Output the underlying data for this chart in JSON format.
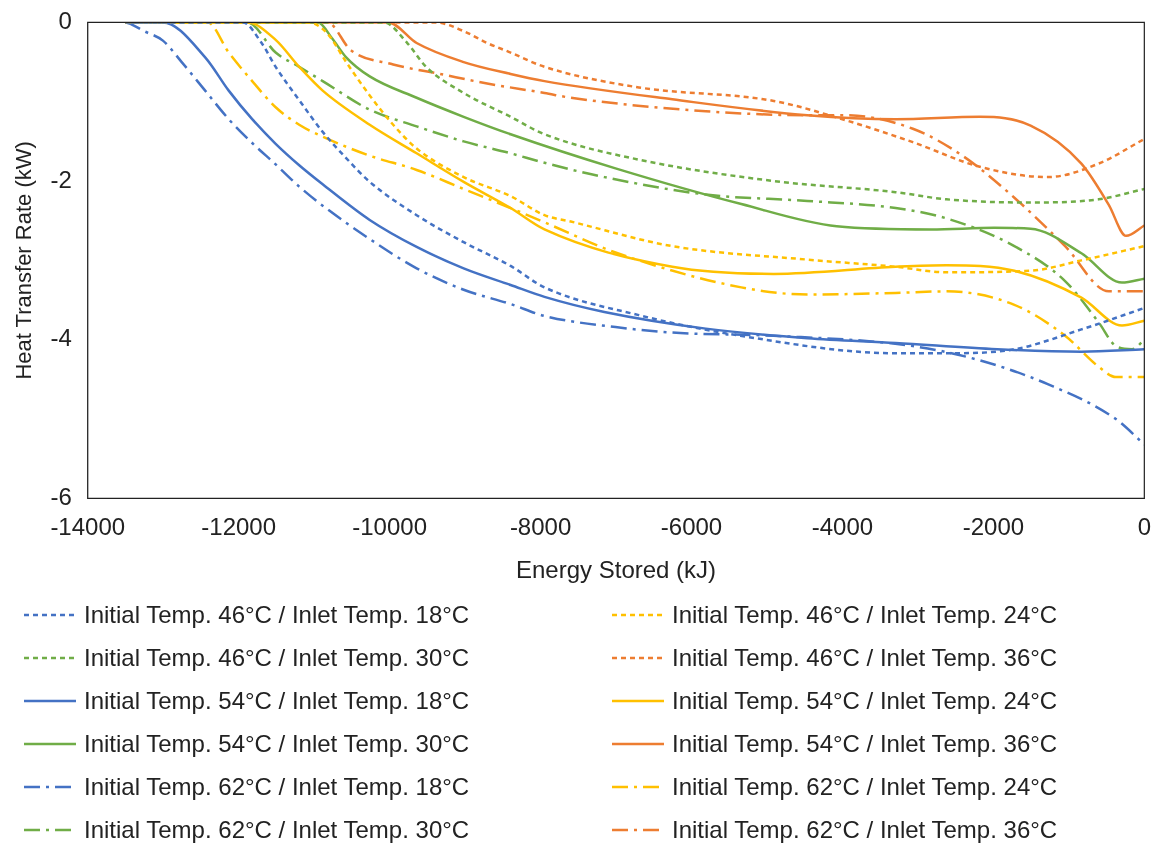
{
  "chart_data": {
    "type": "line",
    "xlabel": "Energy Stored (kJ)",
    "ylabel": "Heat Transfer Rate (kW)",
    "xlim": [
      -14000,
      0
    ],
    "xticks": [
      -14000,
      -12000,
      -10000,
      -8000,
      -6000,
      -4000,
      -2000,
      0
    ],
    "ylim": [
      -6,
      0
    ],
    "yticks": [
      -6,
      -4,
      -2,
      0
    ],
    "grid": false,
    "legend": "bottom",
    "marker": "none",
    "series": [
      {
        "name": "Initial Temp. 46°C / Inlet Temp. 18°C",
        "color": "#4472c4",
        "line_style": "dashed",
        "x": [
          -13500,
          -11946,
          -11696,
          -11510,
          -11198,
          -10887,
          -10576,
          -10264,
          -9642,
          -9019,
          -8397,
          -7948,
          -6698,
          -5353,
          -3295,
          -2623,
          -1722,
          -834,
          0
        ],
        "values": [
          0,
          0,
          -0.26,
          -0.56,
          -0.98,
          -1.38,
          -1.71,
          -2.01,
          -2.43,
          -2.77,
          -3.07,
          -3.34,
          -3.69,
          -3.95,
          -4.17,
          -4.17,
          -4.12,
          -3.87,
          -3.6
        ]
      },
      {
        "name": "Initial Temp. 46°C / Inlet Temp. 24°C",
        "color": "#ffc000",
        "line_style": "dashed",
        "x": [
          -13500,
          -11074,
          -10825,
          -10576,
          -10264,
          -9953,
          -9642,
          -9019,
          -8397,
          -7948,
          -7600,
          -6254,
          -4465,
          -3295,
          -2623,
          -1507,
          -834,
          0
        ],
        "values": [
          0,
          0,
          -0.14,
          -0.5,
          -0.92,
          -1.29,
          -1.59,
          -1.95,
          -2.19,
          -2.43,
          -2.51,
          -2.82,
          -2.99,
          -3.08,
          -3.15,
          -3.13,
          -3.0,
          -2.82
        ]
      },
      {
        "name": "Initial Temp. 46°C / Inlet Temp. 30°C",
        "color": "#70ad47",
        "line_style": "dashed",
        "x": [
          -13500,
          -10078,
          -9766,
          -9517,
          -9019,
          -8397,
          -7948,
          -6698,
          -4910,
          -3295,
          -2623,
          -1507,
          -606,
          0
        ],
        "values": [
          0,
          0,
          -0.26,
          -0.56,
          -0.89,
          -1.19,
          -1.41,
          -1.73,
          -2.0,
          -2.14,
          -2.23,
          -2.27,
          -2.23,
          -2.1
        ]
      },
      {
        "name": "Initial Temp. 46°C / Inlet Temp. 36°C",
        "color": "#ed7d31",
        "line_style": "dashed",
        "x": [
          -13500,
          -9393,
          -9019,
          -8708,
          -8397,
          -7948,
          -6698,
          -4910,
          -3968,
          -3067,
          -2180,
          -1280,
          -606,
          0
        ],
        "values": [
          0,
          0,
          -0.11,
          -0.26,
          -0.38,
          -0.56,
          -0.82,
          -0.99,
          -1.23,
          -1.51,
          -1.82,
          -1.95,
          -1.78,
          -1.47
        ]
      },
      {
        "name": "Initial Temp. 54°C / Inlet Temp. 18°C",
        "color": "#4472c4",
        "line_style": "solid",
        "x": [
          -13500,
          -13004,
          -12444,
          -12132,
          -11821,
          -11510,
          -11198,
          -10887,
          -10264,
          -9642,
          -9019,
          -8397,
          -7948,
          -7155,
          -5810,
          -4465,
          -3295,
          -1950,
          -834,
          0
        ],
        "values": [
          0,
          0,
          -0.44,
          -0.86,
          -1.22,
          -1.53,
          -1.8,
          -2.04,
          -2.49,
          -2.83,
          -3.1,
          -3.31,
          -3.46,
          -3.65,
          -3.86,
          -3.98,
          -4.04,
          -4.12,
          -4.15,
          -4.12
        ]
      },
      {
        "name": "Initial Temp. 54°C / Inlet Temp. 24°C",
        "color": "#ffc000",
        "line_style": "solid",
        "x": [
          -13500,
          -11883,
          -11510,
          -11198,
          -10887,
          -10264,
          -9642,
          -9019,
          -8397,
          -7948,
          -6254,
          -4910,
          -3295,
          -2623,
          -1722,
          -834,
          -296,
          0
        ],
        "values": [
          0,
          0,
          -0.22,
          -0.56,
          -0.86,
          -1.29,
          -1.65,
          -2.01,
          -2.34,
          -2.61,
          -3.08,
          -3.17,
          -3.08,
          -3.06,
          -3.13,
          -3.47,
          -3.82,
          -3.76
        ]
      },
      {
        "name": "Initial Temp. 54°C / Inlet Temp. 30°C",
        "color": "#70ad47",
        "line_style": "solid",
        "x": [
          -13500,
          -10949,
          -10763,
          -10576,
          -10264,
          -9642,
          -9019,
          -8397,
          -7007,
          -5340,
          -4076,
          -2825,
          -1991,
          -1507,
          -834,
          -296,
          0
        ],
        "values": [
          0,
          0,
          -0.2,
          -0.44,
          -0.68,
          -0.95,
          -1.19,
          -1.41,
          -1.84,
          -2.29,
          -2.57,
          -2.61,
          -2.59,
          -2.6,
          -2.91,
          -3.28,
          -3.23
        ]
      },
      {
        "name": "Initial Temp. 54°C / Inlet Temp. 36°C",
        "color": "#ed7d31",
        "line_style": "solid",
        "x": [
          -13500,
          -10016,
          -9642,
          -9019,
          -8397,
          -7948,
          -6254,
          -4465,
          -3295,
          -2180,
          -1507,
          -834,
          -471,
          -242,
          0
        ],
        "values": [
          0,
          0,
          -0.26,
          -0.5,
          -0.65,
          -0.74,
          -0.97,
          -1.17,
          -1.22,
          -1.19,
          -1.3,
          -1.78,
          -2.3,
          -2.69,
          -2.56
        ]
      },
      {
        "name": "Initial Temp. 62°C / Inlet Temp. 18°C",
        "color": "#4472c4",
        "line_style": "dashdot",
        "x": [
          -13500,
          -13409,
          -13253,
          -13004,
          -12755,
          -12444,
          -12132,
          -11821,
          -11510,
          -11198,
          -10887,
          -10264,
          -9642,
          -9019,
          -8397,
          -7948,
          -7007,
          -6254,
          -4910,
          -3067,
          -2180,
          -1280,
          -377,
          0
        ],
        "values": [
          0,
          -0.03,
          -0.11,
          -0.23,
          -0.5,
          -0.86,
          -1.22,
          -1.52,
          -1.79,
          -2.07,
          -2.31,
          -2.73,
          -3.1,
          -3.37,
          -3.55,
          -3.7,
          -3.84,
          -3.91,
          -3.95,
          -4.08,
          -4.26,
          -4.56,
          -5.0,
          -5.32
        ]
      },
      {
        "name": "Initial Temp. 62°C / Inlet Temp. 24°C",
        "color": "#ffc000",
        "line_style": "dashdot",
        "x": [
          -13500,
          -12412,
          -12132,
          -11821,
          -11510,
          -11198,
          -10887,
          -10264,
          -9642,
          -9019,
          -8397,
          -7948,
          -7007,
          -5340,
          -4465,
          -3295,
          -2623,
          -1722,
          -1050,
          -606,
          -377,
          0
        ],
        "values": [
          0,
          0,
          -0.38,
          -0.74,
          -1.07,
          -1.29,
          -1.44,
          -1.68,
          -1.86,
          -2.1,
          -2.34,
          -2.52,
          -2.9,
          -3.34,
          -3.43,
          -3.41,
          -3.39,
          -3.56,
          -3.95,
          -4.34,
          -4.47,
          -4.47
        ]
      },
      {
        "name": "Initial Temp. 62°C / Inlet Temp. 30°C",
        "color": "#70ad47",
        "line_style": "dashdot",
        "x": [
          -13500,
          -11883,
          -11510,
          -11198,
          -10887,
          -10264,
          -9642,
          -9019,
          -8397,
          -7948,
          -7155,
          -5810,
          -4465,
          -3295,
          -2623,
          -1722,
          -1050,
          -606,
          -377,
          -162,
          0
        ],
        "values": [
          0,
          0,
          -0.38,
          -0.56,
          -0.74,
          -1.1,
          -1.31,
          -1.5,
          -1.65,
          -1.77,
          -1.95,
          -2.17,
          -2.25,
          -2.34,
          -2.47,
          -2.82,
          -3.26,
          -3.78,
          -4.08,
          -4.12,
          -4.0
        ]
      },
      {
        "name": "Initial Temp. 62°C / Inlet Temp. 36°C",
        "color": "#ed7d31",
        "line_style": "dashdot",
        "x": [
          -13500,
          -10825,
          -10514,
          -9953,
          -9331,
          -8708,
          -7948,
          -7600,
          -5810,
          -4465,
          -3968,
          -3067,
          -2395,
          -1722,
          -1050,
          -471,
          0
        ],
        "values": [
          0,
          0,
          -0.35,
          -0.53,
          -0.65,
          -0.77,
          -0.89,
          -0.95,
          -1.12,
          -1.17,
          -1.17,
          -1.34,
          -1.69,
          -2.21,
          -2.82,
          -3.39,
          -3.39
        ]
      }
    ]
  }
}
